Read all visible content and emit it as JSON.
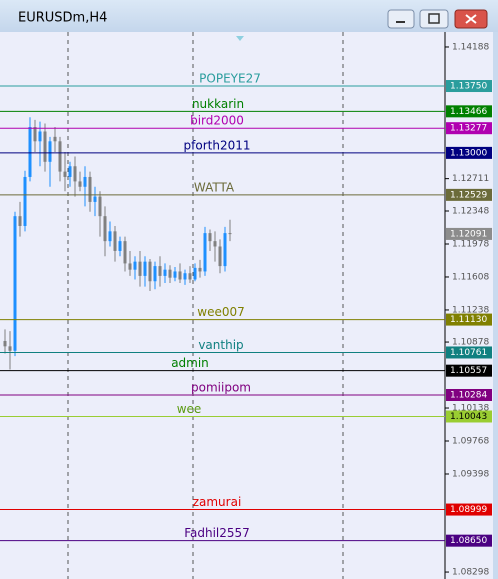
{
  "window": {
    "title": "EURUSDm,H4"
  },
  "chart_data": {
    "type": "candlestick",
    "ylim": [
      1.0822,
      1.14356
    ],
    "yticks": [
      1.14188,
      1.12711,
      1.12348,
      1.11978,
      1.11608,
      1.11238,
      1.10878,
      1.10138,
      1.09768,
      1.09398,
      1.08298
    ],
    "up_color": "#1e90ff",
    "down_color": "#808080",
    "current_price": 1.12091,
    "current_price_color": "#8c8c8c",
    "candles": [
      [
        1.1089,
        1.1102,
        1.1075,
        1.1083
      ],
      [
        1.1083,
        1.11,
        1.1057,
        1.1078
      ],
      [
        1.1078,
        1.1234,
        1.1072,
        1.1229
      ],
      [
        1.1229,
        1.1245,
        1.1206,
        1.1218
      ],
      [
        1.1218,
        1.128,
        1.1212,
        1.1273
      ],
      [
        1.1273,
        1.134,
        1.1268,
        1.1329
      ],
      [
        1.1329,
        1.1337,
        1.1301,
        1.1313
      ],
      [
        1.1313,
        1.1335,
        1.1285,
        1.1324
      ],
      [
        1.1324,
        1.1333,
        1.1279,
        1.129
      ],
      [
        1.129,
        1.1318,
        1.1262,
        1.1313
      ],
      [
        1.1318,
        1.1329,
        1.1301,
        1.1313
      ],
      [
        1.1313,
        1.1318,
        1.1268,
        1.1279
      ],
      [
        1.1279,
        1.1301,
        1.1257,
        1.1273
      ],
      [
        1.1273,
        1.129,
        1.1262,
        1.1285
      ],
      [
        1.1285,
        1.1296,
        1.1251,
        1.1268
      ],
      [
        1.1268,
        1.1279,
        1.1257,
        1.1262
      ],
      [
        1.1262,
        1.1285,
        1.124,
        1.1273
      ],
      [
        1.1273,
        1.1279,
        1.1234,
        1.1245
      ],
      [
        1.1245,
        1.1262,
        1.1229,
        1.1251
      ],
      [
        1.1251,
        1.1257,
        1.1206,
        1.1229
      ],
      [
        1.1229,
        1.124,
        1.1184,
        1.1201
      ],
      [
        1.1201,
        1.1223,
        1.1195,
        1.1212
      ],
      [
        1.1212,
        1.1218,
        1.1178,
        1.119
      ],
      [
        1.119,
        1.1206,
        1.1184,
        1.1201
      ],
      [
        1.1201,
        1.1206,
        1.1167,
        1.1176
      ],
      [
        1.1176,
        1.119,
        1.1162,
        1.1169
      ],
      [
        1.1169,
        1.1184,
        1.1158,
        1.1178
      ],
      [
        1.1178,
        1.119,
        1.115,
        1.1162
      ],
      [
        1.1162,
        1.1184,
        1.115,
        1.1178
      ],
      [
        1.1178,
        1.1181,
        1.1145,
        1.1156
      ],
      [
        1.1156,
        1.1178,
        1.1147,
        1.1173
      ],
      [
        1.1173,
        1.1184,
        1.115,
        1.1162
      ],
      [
        1.1162,
        1.1176,
        1.1154,
        1.1169
      ],
      [
        1.1169,
        1.1174,
        1.1154,
        1.116
      ],
      [
        1.116,
        1.1172,
        1.1156,
        1.1167
      ],
      [
        1.1167,
        1.1176,
        1.1154,
        1.1158
      ],
      [
        1.1158,
        1.1169,
        1.1152,
        1.1165
      ],
      [
        1.1165,
        1.1173,
        1.1154,
        1.1158
      ],
      [
        1.1158,
        1.1176,
        1.1156,
        1.1171
      ],
      [
        1.1171,
        1.118,
        1.116,
        1.1167
      ],
      [
        1.1167,
        1.1217,
        1.1162,
        1.121
      ],
      [
        1.121,
        1.1214,
        1.119,
        1.1201
      ],
      [
        1.1201,
        1.1212,
        1.1178,
        1.1195
      ],
      [
        1.1195,
        1.1203,
        1.1165,
        1.1173
      ],
      [
        1.1173,
        1.1217,
        1.1167,
        1.121
      ],
      [
        1.121,
        1.1225,
        1.1201,
        1.12091
      ]
    ],
    "levels": [
      {
        "name": "POPEYE27",
        "price": 1.1375,
        "price_label": "1.13750",
        "color": "#2a9d9d"
      },
      {
        "name": "nukkarin",
        "price": 1.13466,
        "color": "#008000"
      },
      {
        "name": "bird2000",
        "price": 1.13277,
        "color": "#b000b0"
      },
      {
        "name": "pforth2011",
        "price": 1.13,
        "price_label": "1.13000",
        "color": "#000080"
      },
      {
        "name": "WATTA",
        "price": 1.12529,
        "color": "#6b6b3a"
      },
      {
        "name": "wee007",
        "price": 1.1113,
        "price_label": "1.11130",
        "color": "#808000"
      },
      {
        "name": "vanthip",
        "price": 1.10761,
        "color": "#108080"
      },
      {
        "name": "admin",
        "price": 1.10557,
        "color": "#000000",
        "label_color": "#008000"
      },
      {
        "name": "pomiipom",
        "price": 1.10284,
        "color": "#800080"
      },
      {
        "name": "wee",
        "price": 1.10043,
        "color": "#9acd32",
        "label_color": "#5a9a10"
      },
      {
        "name": "zamurai",
        "price": 1.08999,
        "color": "#e00000"
      },
      {
        "name": "Fadhil2557",
        "price": 1.0865,
        "price_label": "1.08650",
        "color": "#4b0082"
      }
    ]
  }
}
